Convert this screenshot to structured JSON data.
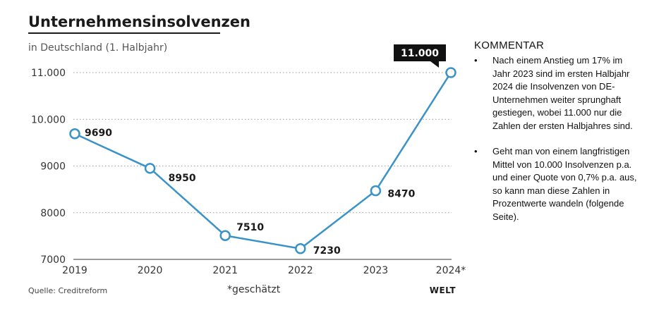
{
  "chart_data": {
    "type": "line",
    "title": "Unternehmensinsolvenzen",
    "subtitle": "in Deutschland (1. Halbjahr)",
    "categories": [
      "2019",
      "2020",
      "2021",
      "2022",
      "2023",
      "2024*"
    ],
    "series": [
      {
        "values": [
          9690,
          8950,
          7510,
          7230,
          8470,
          11000
        ],
        "labels": [
          "9690",
          "8950",
          "7510",
          "7230",
          "8470",
          "11.000"
        ],
        "color": "#3a93c8"
      }
    ],
    "y_ticks": [
      7000,
      8000,
      9000,
      10000,
      11000
    ],
    "y_tick_labels": [
      "7000",
      "8000",
      "9000",
      "10.000",
      "11.000"
    ],
    "ylim": [
      7000,
      11000
    ],
    "grid": "dotted horizontal",
    "source": "Quelle: Creditreform",
    "footnote": "*geschätzt",
    "logo": "WELT",
    "highlight_color": "#111111"
  },
  "commentary": {
    "heading": "KOMMENTAR",
    "bullet_symbol": "•",
    "items": [
      "Nach einem Anstieg um 17% im Jahr 2023 sind im ersten Halbjahr 2024 die Insolvenzen von DE-Unternehmen weiter sprunghaft gestiegen, wobei 11.000 nur die Zahlen der ersten Halbjahres sind.",
      "Geht man von einem langfristigen Mittel von 10.000 Insolvenzen p.a. und einer Quote von 0,7% p.a. aus, so kann man diese Zahlen in Prozentwerte wandeln (folgende Seite)."
    ]
  }
}
